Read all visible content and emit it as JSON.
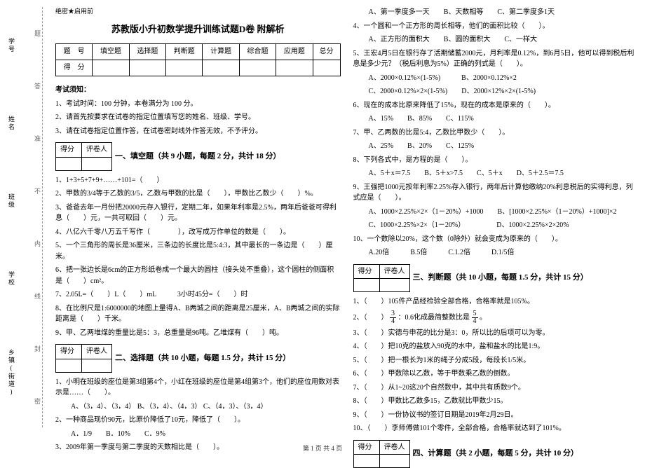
{
  "secret": "绝密★启用前",
  "title": "苏教版小升初数学提升训练试题D卷 附解析",
  "scoreTable": {
    "headers": [
      "题　号",
      "填空题",
      "选择题",
      "判断题",
      "计算题",
      "综合题",
      "应用题",
      "总分"
    ],
    "row2first": "得　分"
  },
  "noticeTitle": "考试须知：",
  "notices": [
    "1、考试时间：100 分钟，本卷满分为 100 分。",
    "2、请首先按要求在试卷的指定位置填写您的姓名、班级、学号。",
    "3、请在试卷指定位置作答，在试卷密封线外作答无效，不予评分。"
  ],
  "miniHeader": [
    "得分",
    "评卷人"
  ],
  "sections": {
    "s1": "一、填空题（共 9 小题，每题 2 分，共计 18 分）",
    "s2": "二、选择题（共 10 小题，每题 1.5 分，共计 15 分）",
    "s3": "三、判断题（共 10 小题，每题 1.5 分，共计 15 分）",
    "s4": "四、计算题（共 2 小题，每题 5 分，共计 10 分）"
  },
  "fill": {
    "q1": "1、1+3+5+7+9+……+101=（　　）",
    "q2": "2、甲数的3/4等于乙数的3/5，乙数与甲数的比是（　　），甲数比乙数少（　　）%。",
    "q3": "3、爸爸去年一月份把20000元存入银行，定期二年，如果年利率是2.5%，两年后爸爸可得利息（　　）元，一共可取回（　　）元。",
    "q4": "4、八亿六千零八万五千写作（　　　　），改写成万作单位的数是（　　）。",
    "q5": "5、一个三角形的周长是36厘米，三条边的长度比是5:4:3，其中最长的一条边是（　　）厘米。",
    "q6": "6、把一张边长是6cm的正方形纸卷成一个最大的圆柱（接头处不重叠），这个圆柱的侧面积是（　　）cm²。",
    "q7": "7、2.05L=（　　）L（　　）mL　　　3小时45分=（　　）时",
    "q8": "8、在比例尺是1:6000000的地图上量得A、B两城之间的距离是25厘米，A、B两城之间的实际距离是（　　）千米。",
    "q9": "9、甲、乙两堆煤的重量比是5：3，总重量是96吨。乙堆煤有（　　）吨。"
  },
  "choice": {
    "q1": "1、小明在班级的座位是第3组第4个，小红在班级的座位是第4组第3个，他们的座位用数对表示是……（　　）。",
    "q1opts": "A、（3，4）、（3，4）  B、（3，4）、（4，3）  C、（4，3）、（3，4）",
    "q2": "2、一种商品现价90元，比原价降低了10元，降低了（　　）。",
    "q2opts": "A．1/9　　B．10%　　C．9%",
    "q3": "3、2009年第一季度与第二季度的天数相比是（　　）。",
    "q3opts": "A、第一季度多一天　　B、天数相等　　C、第二季度多1天",
    "q4": "4、一个圆和一个正方形的周长相等，他们的面积比较（　　）。",
    "q4opts": "A、正方形的面积大　　B、圆的面积大　　C、一样大",
    "q5": "5、王宏4月5日在银行存了活期储蓄2000元，月利率是0.12%，到6月5日，他可以得到税后利息是多少元？（税后利息为5%）正确的列式是（　　）。",
    "q5a": "A、2000×0.12%×(1-5%)　　　B、2000×0.12%×2",
    "q5b": "C、2000×0.12%×2×(1-5%)　　D、2000×12%×2×(1-5%)",
    "q6": "6、现在的成本比原来降低了15%，现在的成本是原来的（　　）。",
    "q6opts": "A、15%　　B、85%　　C、115%",
    "q7": "7、甲、乙两数的比是5:4，乙数比甲数少（　　）。",
    "q7opts": "A、25%　　B、20%　　C、125%",
    "q8": "8、下列各式中，是方程的是（　　）。",
    "q8opts": "A、5＋x＝7.5　　B、5＋x>7.5　　C、5＋x　　D、5＋2.5＝7.5",
    "q9": "9、王强把1000元按年利率2.25%存入银行，两年后计算他缴纳20%利息税后的实得利息，列式应是（　　）。",
    "q9a": "A、1000×2.25%×2×（1－20%）+1000　　B、[1000×2.25%×（1－20%）+1000]×2",
    "q9b": "C、1000×2.25%×2×（1－20%）　　　　　D、1000×2.25%×2×20%",
    "q10": "10、一个数除以20%，这个数（0除外）就会变成为原来的（　　）。",
    "q10opts": "A.20倍　　　B.5倍　　　C.1.2倍　　　D.1/5倍"
  },
  "judge": {
    "q1": "1、（　　）105件产品经检验全部合格，合格率就是105%。",
    "q2a": "2、（　　）",
    "q2b": "：0.6化成最简整数比是",
    "q2c": "。",
    "q3": "3、（　　）实德与申花的比分是3：0，所以比的后项可以为零。",
    "q4": "4、（　　）把10克的盐放入90克的水中，盐和盐水的比是1:9。",
    "q5": "5、（　　）把一根长为1米的绳子分成5段，每段长1/5米。",
    "q6": "6、（　　）甲数除以乙数，等于甲数乘乙数的倒数。",
    "q7": "7、（　　）从1~20这20个自然数中，其中共有质数9个。",
    "q8": "8、（　　）甲数比乙数多15，乙数就比甲数少15。",
    "q9": "9、（　　）一份协议书的签订日期是2019年2月29日。",
    "q10": "10、（　　）李师傅做101个零件，全部合格，合格率就达到了101%。"
  },
  "frac1": {
    "n": "3",
    "d": "4"
  },
  "frac2": {
    "n": "5",
    "d": "4"
  },
  "binding": {
    "labels": [
      "学号",
      "姓名",
      "班级",
      "学校",
      "乡镇(街道)"
    ],
    "marks": [
      "题",
      "答",
      "准",
      "不",
      "内",
      "线",
      "封",
      "密"
    ]
  },
  "footer": "第 1 页 共 4 页"
}
